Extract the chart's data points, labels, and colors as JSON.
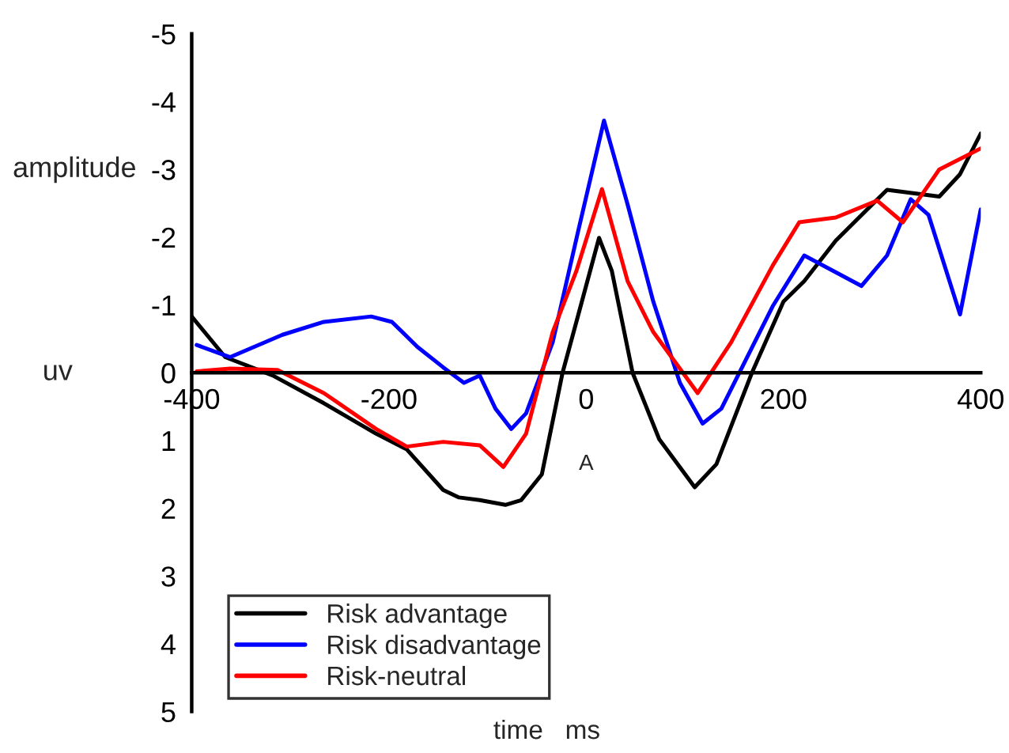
{
  "chart_data": {
    "type": "line",
    "xlabel": "time   ms",
    "ylabel": "amplitude",
    "annotations": [
      "uv",
      "A"
    ],
    "xlim": [
      -400,
      400
    ],
    "xticks": [
      -400,
      -200,
      0,
      200,
      400
    ],
    "ylim": [
      5,
      -5
    ],
    "yticks": [
      -5,
      -4,
      -3,
      -2,
      -1,
      0,
      1,
      2,
      3,
      4,
      5
    ],
    "grid": false,
    "legend": "bottom left",
    "marker": "none",
    "line_style": "solid",
    "series": [
      {
        "name": "Risk advantage",
        "color": "#000000",
        "x": [
          -400,
          -366,
          -318,
          -266,
          -213,
          -182,
          -145,
          -129,
          -108,
          -82,
          -66,
          -45,
          -24,
          -10,
          13,
          26,
          47,
          74,
          110,
          132,
          168,
          200,
          221,
          253,
          305,
          358,
          379,
          400
        ],
        "values": [
          -0.83,
          -0.23,
          0.04,
          0.45,
          0.9,
          1.13,
          1.73,
          1.84,
          1.88,
          1.95,
          1.88,
          1.5,
          0,
          -0.75,
          -1.99,
          -1.5,
          0,
          0.98,
          1.69,
          1.35,
          0,
          -1.05,
          -1.35,
          -1.95,
          -2.7,
          -2.6,
          -2.93,
          -3.53
        ]
      },
      {
        "name": "Risk disadvantage",
        "color": "#0000ff",
        "x": [
          -395,
          -361,
          -308,
          -266,
          -218,
          -197,
          -171,
          -145,
          -124,
          -108,
          -92,
          -76,
          -61,
          -34,
          -8,
          18,
          42,
          68,
          95,
          118,
          137,
          189,
          221,
          279,
          305,
          329,
          347,
          379,
          400
        ],
        "values": [
          -0.41,
          -0.23,
          -0.56,
          -0.75,
          -0.83,
          -0.75,
          -0.38,
          -0.08,
          0.15,
          0.04,
          0.53,
          0.83,
          0.6,
          -0.45,
          -2.1,
          -3.72,
          -2.48,
          -1.05,
          0.15,
          0.75,
          0.53,
          -0.98,
          -1.73,
          -1.28,
          -1.73,
          -2.56,
          -2.33,
          -0.86,
          -2.41
        ]
      },
      {
        "name": "Risk-neutral",
        "color": "#ff0000",
        "x": [
          -395,
          -361,
          -313,
          -266,
          -213,
          -182,
          -145,
          -108,
          -84,
          -61,
          -34,
          -10,
          16,
          42,
          68,
          113,
          147,
          189,
          216,
          253,
          295,
          321,
          358,
          400
        ],
        "values": [
          -0.02,
          -0.06,
          -0.04,
          0.3,
          0.83,
          1.09,
          1.02,
          1.07,
          1.39,
          0.9,
          -0.6,
          -1.5,
          -2.71,
          -1.35,
          -0.6,
          0.3,
          -0.45,
          -1.58,
          -2.22,
          -2.29,
          -2.54,
          -2.22,
          -3.0,
          -3.31
        ]
      }
    ]
  }
}
